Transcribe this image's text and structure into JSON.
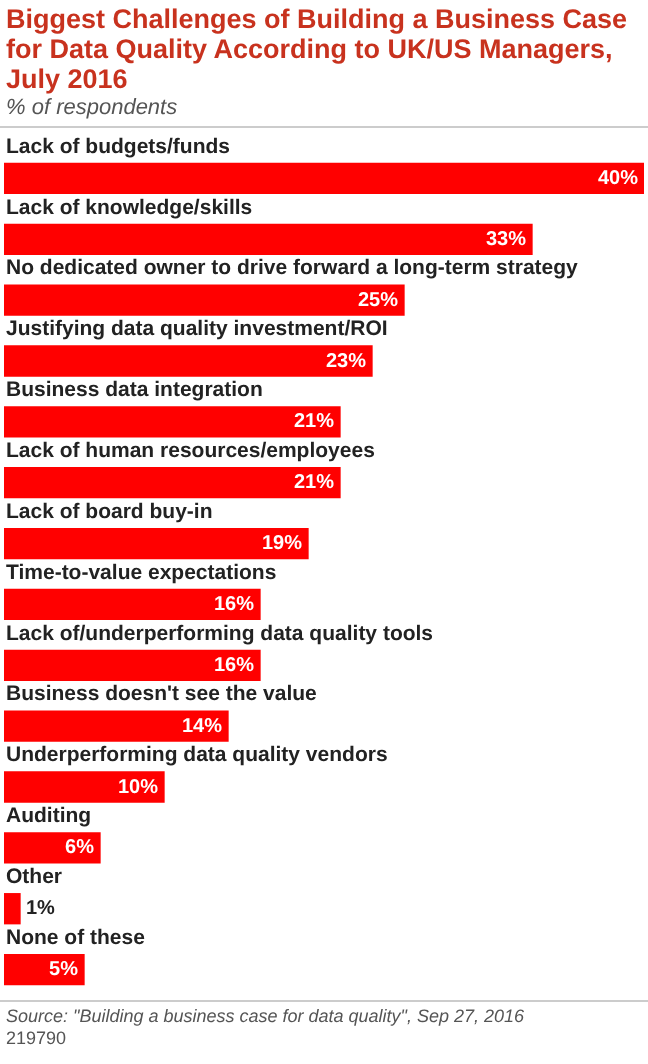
{
  "chart_data": {
    "type": "bar",
    "orientation": "horizontal",
    "title": "Biggest Challenges of Building a Business Case for Data Quality According to UK/US Managers, July 2016",
    "subtitle": "% of respondents",
    "categories": [
      "Lack of budgets/funds",
      "Lack of knowledge/skills",
      "No dedicated owner to drive forward a long-term strategy",
      "Justifying data quality investment/ROI",
      "Business data integration",
      "Lack of human resources/employees",
      "Lack of board buy-in",
      "Time-to-value expectations",
      "Lack of/underperforming data quality tools",
      "Business doesn't see the value",
      "Underperforming data quality vendors",
      "Auditing",
      "Other",
      "None of these"
    ],
    "values": [
      40,
      33,
      25,
      23,
      21,
      21,
      19,
      16,
      16,
      14,
      10,
      6,
      1,
      5
    ],
    "value_labels": [
      "40%",
      "33%",
      "25%",
      "23%",
      "21%",
      "21%",
      "19%",
      "16%",
      "16%",
      "14%",
      "10%",
      "6%",
      "1%",
      "5%"
    ],
    "color": "#ff0000",
    "xlim": [
      0,
      40
    ],
    "annotations": [
      "Source: \"Building a business case for data quality\", Sep 27, 2016",
      "219790"
    ]
  }
}
